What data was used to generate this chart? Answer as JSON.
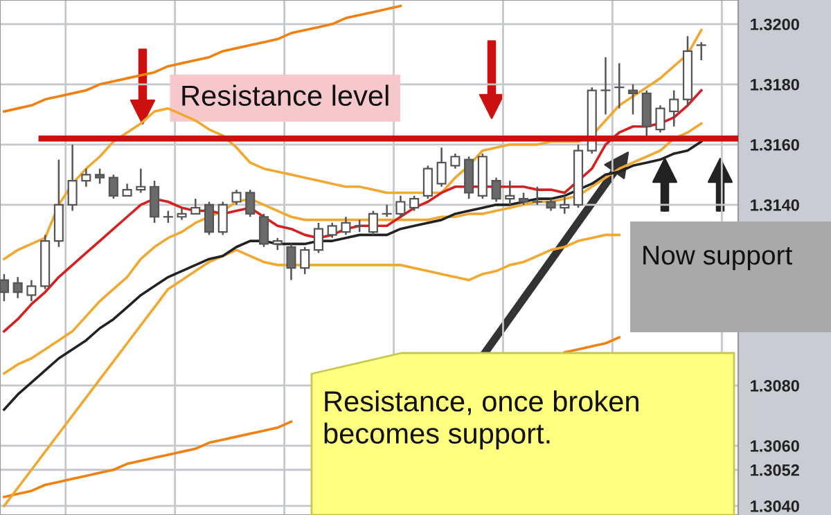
{
  "chart_data": {
    "type": "candlestick",
    "categories": [
      null,
      null,
      null,
      null,
      null,
      null,
      null,
      null,
      null,
      null,
      null,
      null,
      null,
      null,
      null,
      null,
      null,
      null,
      null,
      null,
      null,
      null,
      null,
      null,
      null,
      null,
      null,
      null,
      null,
      null,
      null,
      null,
      null,
      null,
      null,
      null,
      null,
      null,
      null,
      null,
      null,
      null,
      null,
      null,
      null,
      null,
      null,
      null,
      null,
      null,
      null,
      null
    ],
    "ohlc": [
      [
        1.3115,
        1.3117,
        1.3108,
        1.3111
      ],
      [
        1.3114,
        1.3116,
        1.3109,
        1.3111
      ],
      [
        1.311,
        1.3115,
        1.3108,
        1.3113
      ],
      [
        1.3113,
        1.313,
        1.3112,
        1.3128
      ],
      [
        1.3128,
        1.3155,
        1.3126,
        1.314
      ],
      [
        1.314,
        1.316,
        1.3138,
        1.3148
      ],
      [
        1.3148,
        1.3152,
        1.3146,
        1.315
      ],
      [
        1.315,
        1.3152,
        1.3147,
        1.3149
      ],
      [
        1.3149,
        1.315,
        1.3142,
        1.3143
      ],
      [
        1.3143,
        1.3147,
        1.3143,
        1.3145
      ],
      [
        1.3145,
        1.3152,
        1.3144,
        1.3146
      ],
      [
        1.3146,
        1.3148,
        1.3134,
        1.3136
      ],
      [
        1.3136,
        1.3138,
        1.3134,
        1.3136
      ],
      [
        1.3136,
        1.3139,
        1.3135,
        1.3137
      ],
      [
        1.3137,
        1.3142,
        1.3137,
        1.3139
      ],
      [
        1.314,
        1.3141,
        1.313,
        1.3131
      ],
      [
        1.3131,
        1.3141,
        1.313,
        1.314
      ],
      [
        1.3141,
        1.3145,
        1.314,
        1.3144
      ],
      [
        1.3144,
        1.3145,
        1.3136,
        1.3137
      ],
      [
        1.3136,
        1.3137,
        1.3126,
        1.3127
      ],
      [
        1.3127,
        1.3129,
        1.3125,
        1.3128
      ],
      [
        1.3126,
        1.3127,
        1.3115,
        1.3119
      ],
      [
        1.3119,
        1.3126,
        1.3117,
        1.3125
      ],
      [
        1.3125,
        1.3134,
        1.3124,
        1.3132
      ],
      [
        1.313,
        1.3134,
        1.3129,
        1.3133
      ],
      [
        1.3131,
        1.3136,
        1.313,
        1.3134
      ],
      [
        1.3133,
        1.3135,
        1.3131,
        1.3133
      ],
      [
        1.3131,
        1.3138,
        1.313,
        1.3137
      ],
      [
        1.3137,
        1.314,
        1.3136,
        1.3137
      ],
      [
        1.3137,
        1.3143,
        1.3136,
        1.3141
      ],
      [
        1.3139,
        1.3143,
        1.3138,
        1.3142
      ],
      [
        1.3143,
        1.3153,
        1.3142,
        1.3152
      ],
      [
        1.3147,
        1.3159,
        1.3146,
        1.3154
      ],
      [
        1.3153,
        1.3157,
        1.3152,
        1.3156
      ],
      [
        1.3155,
        1.3156,
        1.3142,
        1.3144
      ],
      [
        1.3143,
        1.3157,
        1.3142,
        1.3156
      ],
      [
        1.3148,
        1.3149,
        1.3141,
        1.3142
      ],
      [
        1.3142,
        1.3148,
        1.314,
        1.3143
      ],
      [
        1.3142,
        1.3144,
        1.314,
        1.3141
      ],
      [
        1.3141,
        1.3146,
        1.314,
        1.3141
      ],
      [
        1.3141,
        1.3142,
        1.3138,
        1.3139
      ],
      [
        1.3139,
        1.3143,
        1.3137,
        1.314
      ],
      [
        1.314,
        1.316,
        1.3139,
        1.3158
      ],
      [
        1.3158,
        1.3179,
        1.3157,
        1.3178
      ],
      [
        1.3178,
        1.3189,
        1.317,
        1.3178
      ],
      [
        1.3179,
        1.3187,
        1.3172,
        1.3179
      ],
      [
        1.3178,
        1.318,
        1.317,
        1.3177
      ],
      [
        1.3177,
        1.3178,
        1.3162,
        1.3166
      ],
      [
        1.3165,
        1.3173,
        1.3164,
        1.3172
      ],
      [
        1.3171,
        1.3178,
        1.3166,
        1.3175
      ],
      [
        1.3175,
        1.3196,
        1.3173,
        1.3191
      ],
      [
        1.3193,
        1.3194,
        1.3188,
        1.3193
      ]
    ],
    "series": [
      {
        "type": "line",
        "color": "#f08010",
        "values": [
          1.3171,
          1.3172,
          1.3173,
          1.3175,
          1.3176,
          1.3177,
          1.3178,
          1.318,
          1.3181,
          1.3182,
          1.3183,
          1.3184,
          1.3186,
          1.3187,
          1.3188,
          1.3189,
          1.3191,
          1.3192,
          1.3193,
          1.3194,
          1.3195,
          1.3197,
          1.3198,
          1.3199,
          1.32,
          1.3202,
          1.3203,
          1.3204,
          1.3205,
          1.3206,
          null,
          null,
          null,
          null,
          null,
          null,
          null,
          null,
          null,
          null,
          null,
          null,
          null,
          null,
          null,
          null,
          null,
          null,
          null,
          null,
          null,
          null
        ]
      },
      {
        "type": "line",
        "color": "#f08010",
        "values": [
          1.3043,
          1.3044,
          1.3045,
          1.3047,
          1.3048,
          1.3049,
          1.305,
          1.3051,
          1.3052,
          1.3054,
          1.3055,
          1.3056,
          1.3057,
          1.3058,
          1.3059,
          1.3061,
          1.3062,
          1.3063,
          1.3064,
          1.3065,
          1.3066,
          1.3068,
          null,
          null,
          null,
          null,
          null,
          null,
          null,
          null,
          null,
          null,
          null,
          null,
          null,
          null,
          null,
          null,
          null,
          null,
          null,
          1.3091,
          1.3092,
          1.3093,
          1.3094,
          1.3096,
          null,
          null,
          null,
          null,
          null,
          null
        ]
      },
      {
        "type": "line",
        "color": "#f0a830",
        "values": [
          1.3122,
          1.3125,
          1.3127,
          1.3129,
          1.314,
          1.3147,
          1.3152,
          1.3156,
          1.3161,
          1.3164,
          1.3167,
          1.3171,
          1.3172,
          1.317,
          1.3168,
          1.3165,
          1.3163,
          1.3159,
          1.3154,
          1.3152,
          1.3151,
          1.315,
          1.3149,
          1.3148,
          1.3147,
          1.3146,
          1.3146,
          1.3145,
          1.3144,
          1.3144,
          1.3144,
          1.3144,
          1.3144,
          1.3149,
          1.3153,
          1.3158,
          1.3159,
          1.316,
          1.316,
          1.316,
          1.3161,
          1.3161,
          1.3161,
          1.3163,
          1.3168,
          1.3173,
          1.3176,
          1.3179,
          1.3182,
          1.3186,
          1.319,
          1.3198
        ]
      },
      {
        "type": "line",
        "color": "#f0a830",
        "values": [
          1.3084,
          1.3087,
          1.3089,
          1.3092,
          1.3095,
          1.3098,
          1.3103,
          1.3108,
          1.3112,
          1.3116,
          1.3122,
          1.3126,
          1.3129,
          1.3131,
          1.3134,
          1.3136,
          1.3138,
          1.3141,
          1.3142,
          1.314,
          1.3138,
          1.3136,
          1.3135,
          1.3135,
          1.3135,
          1.3135,
          1.3135,
          1.3135,
          1.3135,
          1.3135,
          1.3135,
          1.3135,
          1.3136,
          1.3136,
          1.3137,
          1.3137,
          1.3138,
          1.3139,
          1.314,
          1.3141,
          1.3141,
          1.3142,
          1.3143,
          1.3146,
          1.3149,
          1.3152,
          1.3154,
          1.3156,
          1.3158,
          1.3162,
          1.3164,
          1.3167
        ]
      },
      {
        "type": "line",
        "color": "#f0a830",
        "values": [
          1.304,
          1.3046,
          1.3052,
          1.3058,
          1.3064,
          1.307,
          1.3076,
          1.3082,
          1.3088,
          1.3094,
          1.31,
          1.3106,
          1.3112,
          1.3115,
          1.3118,
          1.3121,
          1.3123,
          1.3125,
          1.3123,
          1.3121,
          1.312,
          1.312,
          1.312,
          1.312,
          1.312,
          1.312,
          1.312,
          1.312,
          1.312,
          1.312,
          1.3119,
          1.3118,
          1.3117,
          1.3116,
          1.3115,
          1.3117,
          1.3118,
          1.312,
          1.3121,
          1.3123,
          1.3125,
          1.3126,
          1.3128,
          1.3129,
          1.313,
          1.313,
          null,
          null,
          null,
          null,
          null,
          null
        ]
      },
      {
        "type": "line",
        "color": "#222222",
        "values": [
          1.3072,
          1.3077,
          1.3081,
          1.3085,
          1.3089,
          1.3092,
          1.3095,
          1.3099,
          1.3102,
          1.3106,
          1.311,
          1.3113,
          1.3116,
          1.3118,
          1.312,
          1.3122,
          1.3123,
          1.3126,
          1.3128,
          1.3128,
          1.3127,
          1.3127,
          1.3127,
          1.3128,
          1.3128,
          1.3129,
          1.313,
          1.313,
          1.313,
          1.3132,
          1.3133,
          1.3134,
          1.3135,
          1.3137,
          1.3138,
          1.3139,
          1.314,
          1.314,
          1.3141,
          1.3142,
          1.3142,
          1.3143,
          1.3145,
          1.3147,
          1.315,
          1.3151,
          1.3153,
          1.3154,
          1.3155,
          1.3157,
          1.3158,
          1.3161
        ]
      },
      {
        "type": "line",
        "color": "#d42020",
        "values": [
          1.3098,
          1.3102,
          1.3107,
          1.3111,
          1.3116,
          1.312,
          1.3124,
          1.3128,
          1.3132,
          1.3136,
          1.314,
          1.3142,
          1.3141,
          1.3139,
          1.3138,
          1.3138,
          1.3137,
          1.3138,
          1.3139,
          1.3136,
          1.3133,
          1.3132,
          1.313,
          1.3129,
          1.313,
          1.3132,
          1.3133,
          1.3133,
          1.3133,
          1.3136,
          1.3139,
          1.3141,
          1.3144,
          1.3146,
          1.3146,
          1.3146,
          1.3146,
          1.3146,
          1.3146,
          1.3145,
          1.3145,
          1.3144,
          1.3148,
          1.3152,
          1.316,
          1.3164,
          1.3166,
          1.3166,
          1.3167,
          1.3169,
          1.3173,
          1.3178
        ]
      }
    ],
    "ylim": [
      1.3037,
      1.3208
    ],
    "yticks": [
      {
        "value": 1.304,
        "label": "1.3040"
      },
      {
        "value": 1.3052,
        "label": "1.3052"
      },
      {
        "value": 1.306,
        "label": "1.3060"
      },
      {
        "value": 1.308,
        "label": "1.3080"
      },
      {
        "value": 1.314,
        "label": "1.3140"
      },
      {
        "value": 1.316,
        "label": "1.3160"
      },
      {
        "value": 1.318,
        "label": "1.3180"
      },
      {
        "value": 1.32,
        "label": "1.3200"
      }
    ],
    "ref_lines": [
      {
        "axis": "y",
        "value": 1.3162,
        "label": "Resistance level",
        "color": "#cc1010"
      }
    ],
    "annotations": [
      "Now support",
      "Resistance, once broken becomes support."
    ],
    "grid": true,
    "tick_labels": "y"
  }
}
